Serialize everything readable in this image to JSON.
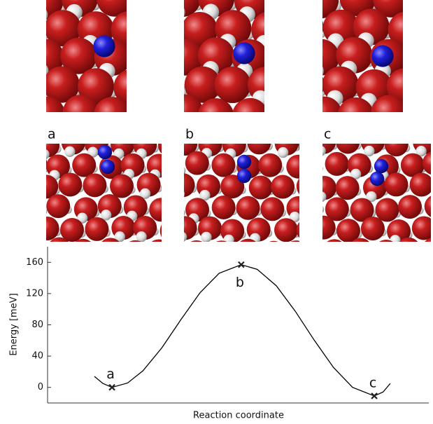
{
  "panel_labels": [
    "a",
    "b",
    "c"
  ],
  "chart_data": {
    "type": "line",
    "y_label": "Energy [meV]",
    "x_label": "Reaction coordinate",
    "xlim": [
      0,
      1
    ],
    "ylim": [
      -20,
      180
    ],
    "yticks": [
      0,
      40,
      80,
      120,
      160
    ],
    "series": [
      {
        "color": "#000000",
        "x": [
          0.123,
          0.145,
          0.169,
          0.21,
          0.25,
          0.3,
          0.35,
          0.4,
          0.45,
          0.508,
          0.55,
          0.6,
          0.65,
          0.7,
          0.75,
          0.8,
          0.857,
          0.88,
          0.899
        ],
        "values": [
          14,
          5,
          0,
          5.6,
          21.1,
          50.7,
          86.8,
          121.1,
          146,
          157,
          151,
          130,
          97.2,
          60,
          25.4,
          0,
          -11,
          -6,
          5
        ]
      }
    ],
    "markers": {
      "labels": [
        "a",
        "b",
        "c"
      ],
      "x": [
        0.169,
        0.508,
        0.857
      ],
      "values": [
        0,
        157,
        -11
      ],
      "color": "#222222"
    }
  }
}
